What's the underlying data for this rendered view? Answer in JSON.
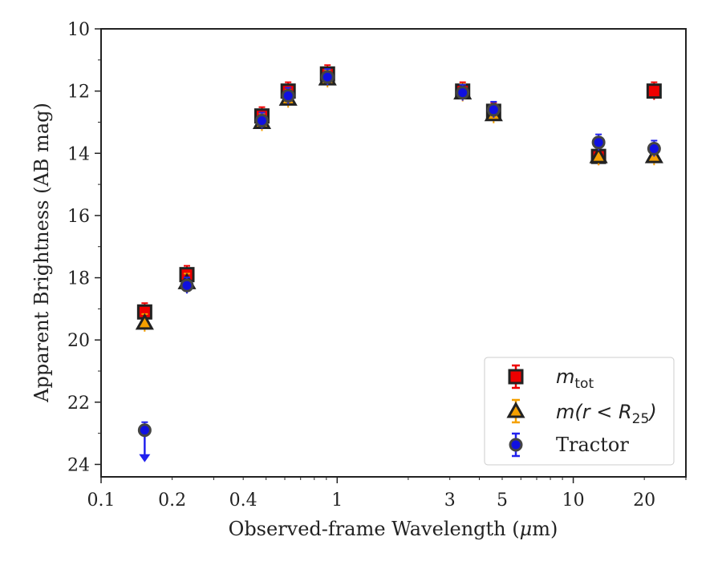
{
  "chart_data": {
    "type": "scatter",
    "xlabel_pre": "Observed-frame Wavelength (",
    "xlabel_mu": "μ",
    "xlabel_post": "m)",
    "ylabel": "Apparent Brightness (AB mag)",
    "xscale": "log",
    "xlim": [
      0.1,
      30
    ],
    "ylim": [
      24.4,
      10
    ],
    "y_inverted": true,
    "grid": false,
    "legend_position": "lower-right",
    "x_ticks": [
      {
        "value": 0.1,
        "label": "0.1"
      },
      {
        "value": 0.2,
        "label": "0.2"
      },
      {
        "value": 0.4,
        "label": "0.4"
      },
      {
        "value": 1,
        "label": "1"
      },
      {
        "value": 3,
        "label": "3"
      },
      {
        "value": 5,
        "label": "5"
      },
      {
        "value": 10,
        "label": "10"
      },
      {
        "value": 20,
        "label": "20"
      }
    ],
    "y_ticks": [
      {
        "value": 10,
        "label": "10"
      },
      {
        "value": 12,
        "label": "12"
      },
      {
        "value": 14,
        "label": "14"
      },
      {
        "value": 16,
        "label": "16"
      },
      {
        "value": 18,
        "label": "18"
      },
      {
        "value": 20,
        "label": "20"
      },
      {
        "value": 22,
        "label": "22"
      },
      {
        "value": 24,
        "label": "24"
      }
    ],
    "series": [
      {
        "name_main": "m",
        "name_sub": "tot",
        "marker": "square",
        "color": "#ee0000",
        "edge_color": "#222222",
        "errbar_color": "#ee0000",
        "x": [
          0.153,
          0.231,
          0.48,
          0.62,
          0.91,
          3.4,
          4.6,
          12.8,
          22.0
        ],
        "y": [
          19.1,
          17.9,
          12.8,
          12.0,
          11.45,
          12.0,
          12.65,
          14.1,
          12.0
        ]
      },
      {
        "name_main": "m",
        "name_paren": "(r < R",
        "name_sub": "25",
        "name_close": ")",
        "marker": "triangle",
        "color": "#f5a000",
        "edge_color": "#222222",
        "errbar_color": "#f5a000",
        "x": [
          0.153,
          0.231,
          0.48,
          0.62,
          0.91,
          3.4,
          4.6,
          12.8,
          22.0
        ],
        "y": [
          19.45,
          18.15,
          13.0,
          12.25,
          11.6,
          12.05,
          12.75,
          14.1,
          14.1
        ]
      },
      {
        "name": "Tractor",
        "marker": "circle",
        "color": "#1010e0",
        "edge_color": "#444444",
        "errbar_color": "#2222ee",
        "upper_limit_x": [
          0.153
        ],
        "x": [
          0.153,
          0.231,
          0.48,
          0.62,
          0.91,
          3.4,
          4.6,
          12.8,
          22.0
        ],
        "y": [
          22.9,
          18.25,
          12.95,
          12.15,
          11.55,
          12.05,
          12.6,
          13.65,
          13.85
        ]
      }
    ]
  }
}
